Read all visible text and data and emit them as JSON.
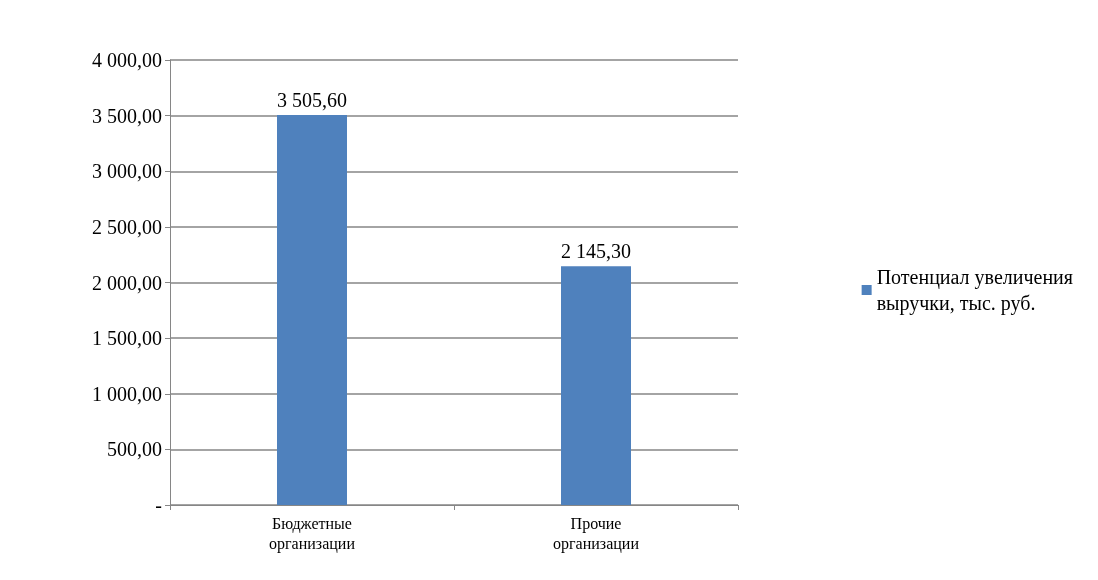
{
  "chart_data": {
    "type": "bar",
    "categories": [
      "Бюджетные\nорганизации",
      "Прочие\nорганизации"
    ],
    "series": [
      {
        "name": "Потенциал увеличения выручки, тыс. руб.",
        "color": "#4f81bd",
        "values": [
          3505.6,
          2145.3
        ],
        "value_labels": [
          "3 505,60",
          "2 145,30"
        ]
      }
    ],
    "ylim": [
      0,
      4000
    ],
    "yticks": [
      {
        "value": 0,
        "label": "-"
      },
      {
        "value": 500,
        "label": "500,00"
      },
      {
        "value": 1000,
        "label": "1 000,00"
      },
      {
        "value": 1500,
        "label": "1 500,00"
      },
      {
        "value": 2000,
        "label": "2 000,00"
      },
      {
        "value": 2500,
        "label": "2 500,00"
      },
      {
        "value": 3000,
        "label": "3 000,00"
      },
      {
        "value": 3500,
        "label": "3 500,00"
      },
      {
        "value": 4000,
        "label": "4 000,00"
      }
    ],
    "grid": "y",
    "legend": "right"
  }
}
